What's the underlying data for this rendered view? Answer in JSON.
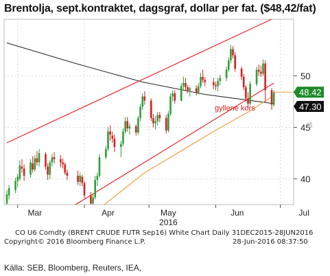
{
  "title": "Brentolja, sept.kontraktet, dagsgraf, dollar per fat. ($48,42/fat)",
  "footer": {
    "line1_left": "CO U6 Comdty (BRENT CRUDE FUTR  Sep16) White Chart  Daily 31DEC2015-28JUN2016",
    "line2_left": "Copyright© 2016 Bloomberg Finance L.P.",
    "line2_right": "28-Jun-2016 08:37:50",
    "source": "Källa: SEB, Bloomberg, Reuters, IEA,"
  },
  "colors": {
    "up": "#2e9e3a",
    "down": "#d42020",
    "channel": "#e8242c",
    "ma_short": "#f0a040",
    "ma_long": "#222222",
    "last_price_bg": "#1f8a2a",
    "ma_label_bg": "#111111"
  },
  "chart_data": {
    "type": "candlestick",
    "x_tick_labels": [
      "Mar",
      "Apr",
      "May",
      "Jun",
      "Jul"
    ],
    "x_year_label": "2016",
    "y_tick_labels": [
      "40",
      "45",
      "50"
    ],
    "ylim": [
      37.5,
      55.5
    ],
    "last_price": "48.42",
    "ma_value": "47.30",
    "annotation": "gyllene kors",
    "right_axis_note": "t9",
    "candles": [
      {
        "date": "2016-02-25",
        "o": 37.6,
        "h": 38.9,
        "l": 37.2,
        "c": 38.5
      },
      {
        "date": "2016-02-26",
        "o": 38.4,
        "h": 39.4,
        "l": 38.0,
        "c": 39.1
      },
      {
        "date": "2016-02-29",
        "o": 38.9,
        "h": 40.1,
        "l": 38.6,
        "c": 39.8
      },
      {
        "date": "2016-03-01",
        "o": 39.8,
        "h": 40.5,
        "l": 39.2,
        "c": 40.2
      },
      {
        "date": "2016-03-02",
        "o": 40.0,
        "h": 41.8,
        "l": 39.8,
        "c": 41.3
      },
      {
        "date": "2016-03-03",
        "o": 41.2,
        "h": 41.9,
        "l": 40.6,
        "c": 41.0
      },
      {
        "date": "2016-03-04",
        "o": 41.0,
        "h": 41.4,
        "l": 39.8,
        "c": 40.3
      },
      {
        "date": "2016-03-07",
        "o": 40.4,
        "h": 41.9,
        "l": 40.1,
        "c": 41.6
      },
      {
        "date": "2016-03-08",
        "o": 41.5,
        "h": 42.2,
        "l": 40.6,
        "c": 40.9
      },
      {
        "date": "2016-03-09",
        "o": 40.9,
        "h": 42.3,
        "l": 40.7,
        "c": 42.0
      },
      {
        "date": "2016-03-10",
        "o": 42.0,
        "h": 42.7,
        "l": 41.3,
        "c": 41.6
      },
      {
        "date": "2016-03-11",
        "o": 41.6,
        "h": 42.9,
        "l": 41.2,
        "c": 42.5
      },
      {
        "date": "2016-03-14",
        "o": 42.4,
        "h": 42.6,
        "l": 40.9,
        "c": 41.2
      },
      {
        "date": "2016-03-15",
        "o": 41.2,
        "h": 41.5,
        "l": 39.9,
        "c": 40.4
      },
      {
        "date": "2016-03-16",
        "o": 40.4,
        "h": 41.8,
        "l": 40.0,
        "c": 41.6
      },
      {
        "date": "2016-03-17",
        "o": 41.6,
        "h": 42.4,
        "l": 41.2,
        "c": 42.1
      },
      {
        "date": "2016-03-18",
        "o": 42.1,
        "h": 42.6,
        "l": 41.5,
        "c": 41.9
      },
      {
        "date": "2016-03-21",
        "o": 41.9,
        "h": 42.3,
        "l": 41.1,
        "c": 41.6
      },
      {
        "date": "2016-03-22",
        "o": 41.6,
        "h": 42.0,
        "l": 41.0,
        "c": 41.4
      },
      {
        "date": "2016-03-23",
        "o": 41.4,
        "h": 41.6,
        "l": 40.4,
        "c": 40.6
      },
      {
        "date": "2016-03-24",
        "o": 40.6,
        "h": 40.9,
        "l": 39.9,
        "c": 40.3
      },
      {
        "date": "2016-03-29",
        "o": 40.3,
        "h": 40.8,
        "l": 39.4,
        "c": 39.7
      },
      {
        "date": "2016-03-30",
        "o": 39.7,
        "h": 40.6,
        "l": 39.3,
        "c": 40.3
      },
      {
        "date": "2016-03-31",
        "o": 40.2,
        "h": 40.4,
        "l": 39.3,
        "c": 39.6
      },
      {
        "date": "2016-04-01",
        "o": 39.6,
        "h": 39.8,
        "l": 38.1,
        "c": 38.4
      },
      {
        "date": "2016-04-04",
        "o": 38.4,
        "h": 38.7,
        "l": 37.2,
        "c": 37.6
      },
      {
        "date": "2016-04-05",
        "o": 37.6,
        "h": 38.5,
        "l": 37.0,
        "c": 38.2
      },
      {
        "date": "2016-04-06",
        "o": 38.2,
        "h": 40.3,
        "l": 38.0,
        "c": 39.9
      },
      {
        "date": "2016-04-07",
        "o": 39.9,
        "h": 40.6,
        "l": 39.3,
        "c": 40.3
      },
      {
        "date": "2016-04-08",
        "o": 40.3,
        "h": 42.4,
        "l": 40.1,
        "c": 42.1
      },
      {
        "date": "2016-04-11",
        "o": 42.1,
        "h": 43.2,
        "l": 41.9,
        "c": 42.9
      },
      {
        "date": "2016-04-12",
        "o": 42.9,
        "h": 45.0,
        "l": 42.7,
        "c": 44.6
      },
      {
        "date": "2016-04-13",
        "o": 44.6,
        "h": 45.2,
        "l": 43.7,
        "c": 44.3
      },
      {
        "date": "2016-04-14",
        "o": 44.2,
        "h": 44.6,
        "l": 43.5,
        "c": 43.9
      },
      {
        "date": "2016-04-15",
        "o": 43.9,
        "h": 44.3,
        "l": 42.6,
        "c": 43.1
      },
      {
        "date": "2016-04-18",
        "o": 43.1,
        "h": 43.7,
        "l": 42.1,
        "c": 43.4
      },
      {
        "date": "2016-04-19",
        "o": 43.4,
        "h": 44.9,
        "l": 43.2,
        "c": 44.6
      },
      {
        "date": "2016-04-20",
        "o": 44.6,
        "h": 46.0,
        "l": 44.4,
        "c": 45.6
      },
      {
        "date": "2016-04-21",
        "o": 45.6,
        "h": 46.0,
        "l": 44.6,
        "c": 44.9
      },
      {
        "date": "2016-04-22",
        "o": 44.9,
        "h": 45.4,
        "l": 44.3,
        "c": 45.1
      },
      {
        "date": "2016-04-25",
        "o": 45.1,
        "h": 45.3,
        "l": 44.2,
        "c": 44.5
      },
      {
        "date": "2016-04-26",
        "o": 44.5,
        "h": 46.1,
        "l": 44.3,
        "c": 45.9
      },
      {
        "date": "2016-04-27",
        "o": 45.9,
        "h": 47.3,
        "l": 45.6,
        "c": 47.0
      },
      {
        "date": "2016-04-28",
        "o": 47.0,
        "h": 48.3,
        "l": 46.7,
        "c": 48.0
      },
      {
        "date": "2016-04-29",
        "o": 48.0,
        "h": 48.5,
        "l": 47.2,
        "c": 47.6
      },
      {
        "date": "2016-05-02",
        "o": 47.6,
        "h": 47.8,
        "l": 45.6,
        "c": 45.9
      },
      {
        "date": "2016-05-03",
        "o": 45.9,
        "h": 46.3,
        "l": 45.0,
        "c": 45.4
      },
      {
        "date": "2016-05-04",
        "o": 45.4,
        "h": 46.1,
        "l": 44.8,
        "c": 45.6
      },
      {
        "date": "2016-05-05",
        "o": 45.6,
        "h": 46.5,
        "l": 45.2,
        "c": 46.2
      },
      {
        "date": "2016-05-06",
        "o": 46.2,
        "h": 46.5,
        "l": 45.5,
        "c": 45.9
      },
      {
        "date": "2016-05-09",
        "o": 45.9,
        "h": 46.2,
        "l": 44.4,
        "c": 44.7
      },
      {
        "date": "2016-05-10",
        "o": 44.7,
        "h": 46.6,
        "l": 44.5,
        "c": 46.3
      },
      {
        "date": "2016-05-11",
        "o": 46.3,
        "h": 48.3,
        "l": 46.1,
        "c": 48.0
      },
      {
        "date": "2016-05-12",
        "o": 48.0,
        "h": 48.6,
        "l": 47.5,
        "c": 48.3
      },
      {
        "date": "2016-05-13",
        "o": 48.3,
        "h": 48.6,
        "l": 47.3,
        "c": 47.6
      },
      {
        "date": "2016-05-16",
        "o": 47.6,
        "h": 49.3,
        "l": 47.5,
        "c": 49.0
      },
      {
        "date": "2016-05-17",
        "o": 49.0,
        "h": 49.9,
        "l": 48.6,
        "c": 49.3
      },
      {
        "date": "2016-05-18",
        "o": 49.3,
        "h": 49.8,
        "l": 48.5,
        "c": 48.9
      },
      {
        "date": "2016-05-19",
        "o": 48.9,
        "h": 49.1,
        "l": 48.3,
        "c": 48.6
      },
      {
        "date": "2016-05-20",
        "o": 48.6,
        "h": 49.0,
        "l": 48.0,
        "c": 48.8
      },
      {
        "date": "2016-05-23",
        "o": 48.8,
        "h": 49.1,
        "l": 48.1,
        "c": 48.4
      },
      {
        "date": "2016-05-24",
        "o": 48.4,
        "h": 49.3,
        "l": 48.2,
        "c": 49.0
      },
      {
        "date": "2016-05-25",
        "o": 49.0,
        "h": 50.3,
        "l": 48.8,
        "c": 49.9
      },
      {
        "date": "2016-05-26",
        "o": 49.9,
        "h": 50.6,
        "l": 49.3,
        "c": 49.6
      },
      {
        "date": "2016-05-27",
        "o": 49.6,
        "h": 49.9,
        "l": 49.0,
        "c": 49.4
      },
      {
        "date": "2016-05-31",
        "o": 49.4,
        "h": 49.8,
        "l": 48.7,
        "c": 49.1
      },
      {
        "date": "2016-06-01",
        "o": 49.1,
        "h": 49.4,
        "l": 48.6,
        "c": 49.0
      },
      {
        "date": "2016-06-02",
        "o": 49.0,
        "h": 49.8,
        "l": 48.5,
        "c": 49.5
      },
      {
        "date": "2016-06-03",
        "o": 49.5,
        "h": 50.1,
        "l": 49.1,
        "c": 49.8
      },
      {
        "date": "2016-06-06",
        "o": 49.8,
        "h": 50.9,
        "l": 49.5,
        "c": 50.6
      },
      {
        "date": "2016-06-07",
        "o": 50.6,
        "h": 51.8,
        "l": 50.4,
        "c": 51.5
      },
      {
        "date": "2016-06-08",
        "o": 51.5,
        "h": 53.0,
        "l": 51.2,
        "c": 52.6
      },
      {
        "date": "2016-06-09",
        "o": 52.6,
        "h": 52.9,
        "l": 51.7,
        "c": 52.0
      },
      {
        "date": "2016-06-10",
        "o": 52.0,
        "h": 52.3,
        "l": 50.4,
        "c": 50.7
      },
      {
        "date": "2016-06-13",
        "o": 50.7,
        "h": 50.9,
        "l": 49.6,
        "c": 49.9
      },
      {
        "date": "2016-06-14",
        "o": 49.9,
        "h": 50.2,
        "l": 48.6,
        "c": 48.9
      },
      {
        "date": "2016-06-15",
        "o": 48.9,
        "h": 49.1,
        "l": 47.5,
        "c": 47.8
      },
      {
        "date": "2016-06-16",
        "o": 47.8,
        "h": 48.4,
        "l": 46.9,
        "c": 47.3
      },
      {
        "date": "2016-06-17",
        "o": 47.3,
        "h": 49.5,
        "l": 47.1,
        "c": 49.2
      },
      {
        "date": "2016-06-20",
        "o": 49.2,
        "h": 50.9,
        "l": 49.0,
        "c": 50.6
      },
      {
        "date": "2016-06-21",
        "o": 50.6,
        "h": 51.1,
        "l": 50.0,
        "c": 50.4
      },
      {
        "date": "2016-06-22",
        "o": 50.4,
        "h": 51.0,
        "l": 49.9,
        "c": 50.2
      },
      {
        "date": "2016-06-23",
        "o": 50.2,
        "h": 51.6,
        "l": 50.0,
        "c": 51.2
      },
      {
        "date": "2016-06-24",
        "o": 51.2,
        "h": 51.5,
        "l": 47.4,
        "c": 48.6
      },
      {
        "date": "2016-06-27",
        "o": 48.6,
        "h": 48.8,
        "l": 46.7,
        "c": 47.2
      },
      {
        "date": "2016-06-28",
        "o": 47.2,
        "h": 48.6,
        "l": 47.0,
        "c": 48.4
      }
    ],
    "channel_upper": [
      [
        "2016-02-25",
        43.5
      ],
      [
        "2016-06-28",
        55.6
      ]
    ],
    "channel_lower": [
      [
        "2016-03-24",
        37.0
      ],
      [
        "2016-06-28",
        49.3
      ]
    ],
    "ma_long_line": [
      [
        "2016-02-25",
        53.2
      ],
      [
        "2016-03-28",
        51.2
      ],
      [
        "2016-04-28",
        49.4
      ],
      [
        "2016-05-27",
        48.2
      ],
      [
        "2016-06-28",
        47.3
      ]
    ],
    "ma_short_line": [
      [
        "2016-02-25",
        31.0
      ],
      [
        "2016-03-31",
        35.8
      ],
      [
        "2016-04-29",
        40.6
      ],
      [
        "2016-05-31",
        44.6
      ],
      [
        "2016-06-17",
        46.6
      ],
      [
        "2016-06-28",
        48.1
      ]
    ]
  }
}
